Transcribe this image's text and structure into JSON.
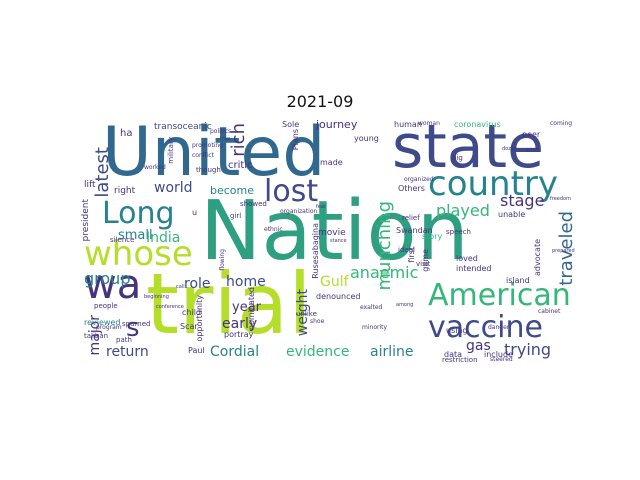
{
  "title": "2021-09",
  "colors": {
    "purple": "#46337e",
    "dark": "#3e4a89",
    "blue": "#31688e",
    "teal": "#26828e",
    "green": "#35b779",
    "lime": "#b5de2b",
    "yellow": "#fde725"
  },
  "words": {
    "nation": "Nation",
    "united": "United",
    "trial": "trial",
    "state": "state",
    "country": "country",
    "long": "Long",
    "lost": "lost",
    "whose": "whose",
    "american": "American",
    "vaccine": "vaccine",
    "wa": "wa",
    "s": "s",
    "latest": "latest",
    "rich": "rich",
    "world": "world",
    "played": "played",
    "stage": "stage",
    "munching": "munching",
    "traveled": "traveled",
    "anaemic": "anaemic",
    "gas": "gas",
    "trying": "trying",
    "airline": "airline",
    "cordial": "Cordial",
    "evidence": "evidence",
    "return": "return",
    "major": "major",
    "early": "early",
    "year": "year",
    "role": "role",
    "home": "home",
    "group": "group",
    "small": "small",
    "india": "India",
    "gulf": "Gulf",
    "weight": "weight",
    "journey": "journey",
    "become": "become",
    "critic": "critic",
    "transoceanic": "transoceanic",
    "ha": "ha",
    "right": "right",
    "lift": "lift",
    "president": "president",
    "reviewed": "reviewed",
    "movie": "movie",
    "nominated": "nominated",
    "denounced": "denounced",
    "rusesabagina": "Rusesabagina",
    "swandan": "Swandan",
    "story": "story",
    "loved": "loved",
    "advocate": "advocate",
    "island": "island",
    "intended": "intended",
    "game": "game",
    "coronavirus": "coronavirus",
    "human": "human",
    "peer": "peer",
    "young": "young",
    "sole": "Sole",
    "plans": "Plans",
    "made": "made",
    "others": "Others",
    "unable": "unable",
    "using": "using",
    "data": "data",
    "restriction": "restriction",
    "include": "include",
    "first": "first",
    "speech": "speech",
    "relief": "relief",
    "ideal": "ideal",
    "paul": "Paul",
    "scar": "Scar",
    "child": "child",
    "portray": "portray",
    "opportunity": "opportunity",
    "taliban": "taliban",
    "military": "military",
    "girl": "girl",
    "though": "though",
    "showed": "showed",
    "path": "path",
    "people": "people",
    "spurned": "spurned",
    "program": "program",
    "silence": "silence",
    "unlike": "unlike",
    "visit": "visit",
    "coming": "coming",
    "big": "big",
    "one": "one",
    "worked": "worked",
    "ethnic": "ethnic",
    "organized": "organized",
    "flowing": "flowing",
    "politics": "politics",
    "promoting": "promoting",
    "conflict": "conflict",
    "organization": "organization",
    "woman": "woman",
    "cabinet": "cabinet",
    "danger": "danger",
    "exalted": "exalted",
    "minority": "minority",
    "steered": "steered",
    "shoe": "shoe",
    "beginning": "beginning",
    "conference": "conference",
    "among": "among",
    "call": "call",
    "freedom": "freedom",
    "prepared": "prepared",
    "stance": "stance",
    "trap": "trap",
    "dozen": "dozen",
    "fear": "fear",
    "u": "u"
  }
}
